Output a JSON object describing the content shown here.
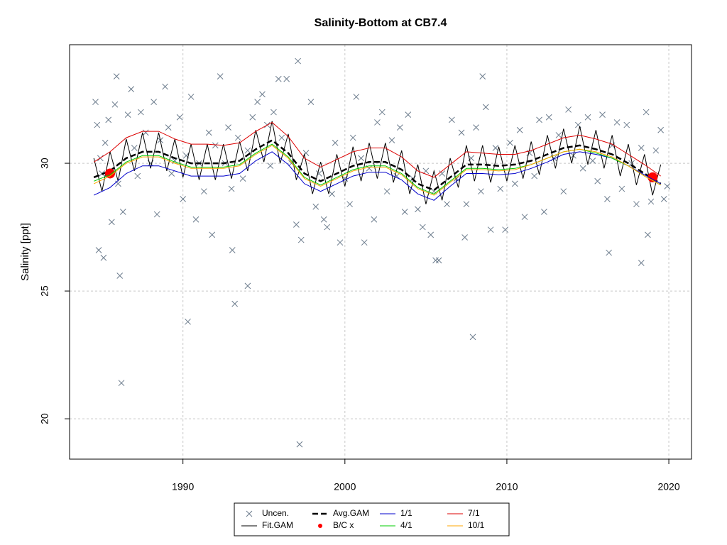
{
  "chart_data": {
    "type": "line",
    "title": "Salinity-Bottom at CB7.4",
    "y_label": "Salinity [ppt]",
    "xlim": [
      1983,
      2021.4
    ],
    "xticks": [
      1990,
      2000,
      2010,
      2020
    ],
    "ylim": [
      18.42,
      34.64
    ],
    "yticks": [
      20,
      25,
      30
    ],
    "grid": true,
    "series": [
      {
        "name": "Uncen.",
        "kind": "scatter",
        "marker": "x",
        "color": "#6b7b8c",
        "x": [
          1984.6,
          1984.7,
          1984.9,
          1985.0,
          1985.2,
          1985.4,
          1985.6,
          1985.8,
          1985.9,
          1986.0,
          1986.3,
          1986.6,
          1986.8,
          1987.0,
          1987.2,
          1987.4,
          1987.7,
          1988.0,
          1988.2,
          1988.4,
          1988.6,
          1988.9,
          1989.1,
          1989.3,
          1989.5,
          1989.8,
          1990.0,
          1990.2,
          1990.5,
          1990.8,
          1991.0,
          1991.3,
          1991.6,
          1991.8,
          1992.0,
          1992.3,
          1992.6,
          1992.8,
          1993.0,
          1993.4,
          1993.7,
          1994.0,
          1994.3,
          1994.6,
          1994.9,
          1995.2,
          1995.4,
          1995.6,
          1995.9,
          1996.1,
          1996.4,
          1996.7,
          1997.0,
          1997.3,
          1997.6,
          1997.9,
          1998.2,
          1998.4,
          1998.7,
          1998.9,
          1999.2,
          1999.4,
          1999.7,
          2000.0,
          2000.3,
          2000.5,
          2000.7,
          2001.0,
          2001.2,
          2001.5,
          2001.8,
          2002.0,
          2002.3,
          2002.6,
          2002.9,
          2003.2,
          2003.4,
          2003.7,
          2003.9,
          2004.2,
          2004.5,
          2004.8,
          2005.0,
          2005.3,
          2005.5,
          2005.8,
          2006.0,
          2006.3,
          2006.6,
          2006.9,
          2007.2,
          2007.5,
          2007.8,
          2008.1,
          2008.4,
          2008.7,
          2009.0,
          2009.3,
          2009.6,
          2009.9,
          2010.2,
          2010.5,
          2010.8,
          2011.1,
          2011.4,
          2011.7,
          2012.0,
          2012.3,
          2012.6,
          2012.9,
          2013.2,
          2013.5,
          2013.8,
          2014.1,
          2014.4,
          2014.7,
          2015.0,
          2015.3,
          2015.6,
          2015.9,
          2016.2,
          2016.5,
          2016.8,
          2017.1,
          2017.4,
          2017.7,
          2018.0,
          2018.3,
          2018.6,
          2018.9,
          2019.2,
          2019.5,
          2019.7,
          2019.9,
          1986.2,
          1990.3,
          1993.2,
          1994.0,
          1997.2,
          2007.9,
          1997.1,
          2008.5,
          1984.8,
          1985.1,
          1986.1,
          1993.05,
          2016.3,
          2018.3,
          2005.6,
          2007.4,
          2018.7
        ],
        "values": [
          32.4,
          31.5,
          30.2,
          29.6,
          30.8,
          31.7,
          27.7,
          32.3,
          33.4,
          29.2,
          28.1,
          31.9,
          32.9,
          30.6,
          29.5,
          32.0,
          31.2,
          30.0,
          32.4,
          28.0,
          30.9,
          33.0,
          31.4,
          29.6,
          30.1,
          31.8,
          28.6,
          30.3,
          32.6,
          27.8,
          30.0,
          28.9,
          31.2,
          27.2,
          30.7,
          33.4,
          30.0,
          31.4,
          29.0,
          31.0,
          29.4,
          30.5,
          31.8,
          32.4,
          32.7,
          31.5,
          29.9,
          32.0,
          33.3,
          31.0,
          33.3,
          30.0,
          27.6,
          27.0,
          30.4,
          32.4,
          28.3,
          29.6,
          27.8,
          27.5,
          28.8,
          30.8,
          26.9,
          29.4,
          28.4,
          31.0,
          32.6,
          30.2,
          26.9,
          29.8,
          27.8,
          31.6,
          32.0,
          28.9,
          30.9,
          29.5,
          31.4,
          28.1,
          31.9,
          29.4,
          28.2,
          27.5,
          29.7,
          27.2,
          28.9,
          26.2,
          29.6,
          28.4,
          31.7,
          29.4,
          31.2,
          28.4,
          30.2,
          31.4,
          28.9,
          32.2,
          27.4,
          30.6,
          29.0,
          27.4,
          30.8,
          29.2,
          31.3,
          27.9,
          30.4,
          29.5,
          31.7,
          28.1,
          31.8,
          30.2,
          31.1,
          28.9,
          32.1,
          30.3,
          31.5,
          29.8,
          31.8,
          30.1,
          29.3,
          31.9,
          28.6,
          30.7,
          31.6,
          29.0,
          31.5,
          30.0,
          28.4,
          30.6,
          32.0,
          28.5,
          30.5,
          31.3,
          28.6,
          29.1,
          21.4,
          23.8,
          24.5,
          25.2,
          19.0,
          23.2,
          34.0,
          33.4,
          26.6,
          26.3,
          25.6,
          26.6,
          26.5,
          26.1,
          26.2,
          27.1,
          27.2
        ]
      },
      {
        "name": "Fit.GAM",
        "kind": "line",
        "width": 1,
        "color": "#000000",
        "x": [
          1984.5,
          1985,
          1985.5,
          1986,
          1986.5,
          1987,
          1987.5,
          1988,
          1988.5,
          1989,
          1989.5,
          1990,
          1990.5,
          1991,
          1991.5,
          1992,
          1992.5,
          1993,
          1993.5,
          1994,
          1994.5,
          1995,
          1995.5,
          1996,
          1996.5,
          1997,
          1997.5,
          1998,
          1998.5,
          1999,
          1999.5,
          2000,
          2000.5,
          2001,
          2001.5,
          2002,
          2002.5,
          2003,
          2003.5,
          2004,
          2004.5,
          2005,
          2005.5,
          2006,
          2006.5,
          2007,
          2007.5,
          2008,
          2008.5,
          2009,
          2009.5,
          2010,
          2010.5,
          2011,
          2011.5,
          2012,
          2012.5,
          2013,
          2013.5,
          2014,
          2014.5,
          2015,
          2015.5,
          2016,
          2016.5,
          2017,
          2017.5,
          2018,
          2018.5,
          2019,
          2019.5
        ],
        "values": [
          30.2,
          28.9,
          30.45,
          29.3,
          30.95,
          29.7,
          31.2,
          29.8,
          31.2,
          29.7,
          30.95,
          29.45,
          30.75,
          29.35,
          30.75,
          29.35,
          30.75,
          29.4,
          30.85,
          29.7,
          31.3,
          30.05,
          31.65,
          30.0,
          31.15,
          29.35,
          30.35,
          28.8,
          30.05,
          28.8,
          30.35,
          29.1,
          30.65,
          29.3,
          30.8,
          29.4,
          30.8,
          29.25,
          30.5,
          28.8,
          29.95,
          28.4,
          29.7,
          28.55,
          30.2,
          29.05,
          30.7,
          29.3,
          30.7,
          29.25,
          30.65,
          29.3,
          30.7,
          29.4,
          30.85,
          29.55,
          31.1,
          29.8,
          31.35,
          30.0,
          31.45,
          29.95,
          31.3,
          29.8,
          31.1,
          29.5,
          30.75,
          29.15,
          30.35,
          28.75,
          29.95
        ]
      },
      {
        "name": "Avg.GAM",
        "kind": "line",
        "width": 2.5,
        "dash": true,
        "color": "#000000",
        "x": [
          1984.5,
          1985.5,
          1986.5,
          1987.5,
          1988.5,
          1989.5,
          1990.5,
          1991.5,
          1992.5,
          1993.5,
          1994.5,
          1995.5,
          1996.5,
          1997.5,
          1998.5,
          1999.5,
          2000.5,
          2001.5,
          2002.5,
          2003.5,
          2004.5,
          2005.5,
          2006.5,
          2007.5,
          2008.5,
          2009.5,
          2010.5,
          2011.5,
          2012.5,
          2013.5,
          2014.5,
          2015.5,
          2016.5,
          2017.5,
          2018.5,
          2019.5
        ],
        "values": [
          29.45,
          29.7,
          30.2,
          30.45,
          30.45,
          30.2,
          30.0,
          30.0,
          30.0,
          30.1,
          30.55,
          30.9,
          30.4,
          29.6,
          29.3,
          29.6,
          29.9,
          30.05,
          30.05,
          29.75,
          29.2,
          28.95,
          29.45,
          29.95,
          29.95,
          29.9,
          29.95,
          30.1,
          30.35,
          30.6,
          30.7,
          30.55,
          30.35,
          30.0,
          29.6,
          29.2
        ]
      },
      {
        "name": "B/C x",
        "kind": "scatter",
        "marker": "dot",
        "color": "#ff0000",
        "x": [
          1985.5,
          2019.0
        ],
        "values": [
          29.6,
          29.45
        ]
      },
      {
        "name": "1/1",
        "kind": "line",
        "width": 1,
        "color": "#0000cc",
        "x": [
          1984.5,
          1985.5,
          1986.5,
          1987.5,
          1988.5,
          1989.5,
          1990.5,
          1991.5,
          1992.5,
          1993.5,
          1994.5,
          1995.5,
          1996.5,
          1997.5,
          1998.5,
          1999.5,
          2000.5,
          2001.5,
          2002.5,
          2003.5,
          2004.5,
          2005.5,
          2006.5,
          2007.5,
          2008.5,
          2009.5,
          2010.5,
          2011.5,
          2012.5,
          2013.5,
          2014.5,
          2015.5,
          2016.5,
          2017.5,
          2018.5,
          2019.5
        ],
        "values": [
          28.75,
          29.05,
          29.6,
          29.9,
          29.9,
          29.7,
          29.5,
          29.5,
          29.5,
          29.6,
          30.1,
          30.45,
          29.95,
          29.2,
          28.9,
          29.2,
          29.5,
          29.65,
          29.65,
          29.35,
          28.8,
          28.55,
          29.1,
          29.6,
          29.6,
          29.55,
          29.6,
          29.8,
          30.05,
          30.35,
          30.45,
          30.35,
          30.2,
          29.9,
          29.55,
          29.2
        ]
      },
      {
        "name": "4/1",
        "kind": "line",
        "width": 1,
        "color": "#00cc00",
        "x": [
          1984.5,
          1985.5,
          1986.5,
          1987.5,
          1988.5,
          1989.5,
          1990.5,
          1991.5,
          1992.5,
          1993.5,
          1994.5,
          1995.5,
          1996.5,
          1997.5,
          1998.5,
          1999.5,
          2000.5,
          2001.5,
          2002.5,
          2003.5,
          2004.5,
          2005.5,
          2006.5,
          2007.5,
          2008.5,
          2009.5,
          2010.5,
          2011.5,
          2012.5,
          2013.5,
          2014.5,
          2015.5,
          2016.5,
          2017.5,
          2018.5,
          2019.5
        ],
        "values": [
          29.3,
          29.55,
          30.05,
          30.3,
          30.3,
          30.05,
          29.85,
          29.85,
          29.85,
          29.95,
          30.4,
          30.75,
          30.25,
          29.45,
          29.15,
          29.45,
          29.75,
          29.9,
          29.9,
          29.6,
          29.05,
          28.8,
          29.3,
          29.8,
          29.8,
          29.75,
          29.8,
          29.95,
          30.2,
          30.45,
          30.55,
          30.4,
          30.2,
          29.9,
          29.5,
          29.15
        ]
      },
      {
        "name": "7/1",
        "kind": "line",
        "width": 1,
        "color": "#dd0000",
        "x": [
          1984.5,
          1985.5,
          1986.5,
          1987.5,
          1988.5,
          1989.5,
          1990.5,
          1991.5,
          1992.5,
          1993.5,
          1994.5,
          1995.5,
          1996.5,
          1997.5,
          1998.5,
          1999.5,
          2000.5,
          2001.5,
          2002.5,
          2003.5,
          2004.5,
          2005.5,
          2006.5,
          2007.5,
          2008.5,
          2009.5,
          2010.5,
          2011.5,
          2012.5,
          2013.5,
          2014.5,
          2015.5,
          2016.5,
          2017.5,
          2018.5,
          2019.5
        ],
        "values": [
          30.05,
          30.45,
          31.0,
          31.25,
          31.25,
          30.95,
          30.75,
          30.75,
          30.7,
          30.8,
          31.25,
          31.6,
          31.05,
          30.2,
          29.85,
          30.15,
          30.45,
          30.6,
          30.6,
          30.25,
          29.7,
          29.45,
          29.95,
          30.45,
          30.4,
          30.35,
          30.35,
          30.5,
          30.75,
          31.0,
          31.1,
          30.95,
          30.75,
          30.35,
          29.95,
          29.5
        ]
      },
      {
        "name": "10/1",
        "kind": "line",
        "width": 1,
        "color": "#ffa500",
        "x": [
          1984.5,
          1985.5,
          1986.5,
          1987.5,
          1988.5,
          1989.5,
          1990.5,
          1991.5,
          1992.5,
          1993.5,
          1994.5,
          1995.5,
          1996.5,
          1997.5,
          1998.5,
          1999.5,
          2000.5,
          2001.5,
          2002.5,
          2003.5,
          2004.5,
          2005.5,
          2006.5,
          2007.5,
          2008.5,
          2009.5,
          2010.5,
          2011.5,
          2012.5,
          2013.5,
          2014.5,
          2015.5,
          2016.5,
          2017.5,
          2018.5,
          2019.5
        ],
        "values": [
          29.2,
          29.5,
          30.0,
          30.25,
          30.25,
          30.0,
          29.8,
          29.8,
          29.8,
          29.9,
          30.35,
          30.7,
          30.2,
          29.4,
          29.1,
          29.4,
          29.7,
          29.85,
          29.85,
          29.55,
          29.0,
          28.75,
          29.25,
          29.75,
          29.75,
          29.7,
          29.75,
          29.95,
          30.2,
          30.45,
          30.55,
          30.45,
          30.25,
          29.9,
          29.5,
          29.15
        ]
      }
    ]
  }
}
